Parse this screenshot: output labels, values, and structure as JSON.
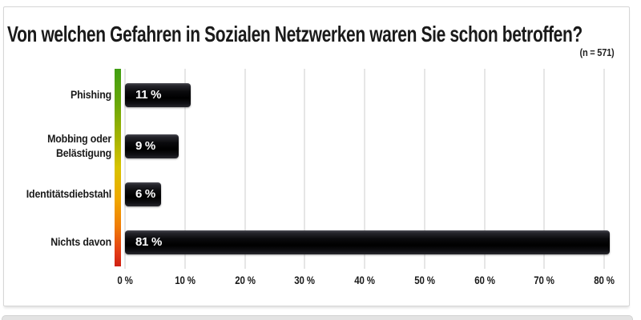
{
  "header": {
    "title": "Von welchen Gefahren in Sozialen Netzwerken waren Sie schon betroffen?",
    "sample_size": "(n = 571)"
  },
  "chart_data": {
    "type": "bar",
    "orientation": "horizontal",
    "title": "Von welchen Gefahren in Sozialen Netzwerken waren Sie schon betroffen?",
    "subtitle": "(n = 571)",
    "categories": [
      "Phishing",
      "Mobbing oder Belästigung",
      "Identitätsdiebstahl",
      "Nichts davon"
    ],
    "values": [
      11,
      9,
      6,
      81
    ],
    "value_labels": [
      "11 %",
      "9 %",
      "6 %",
      "81 %"
    ],
    "x_ticks": [
      {
        "value": 0,
        "label": "0 %"
      },
      {
        "value": 10,
        "label": "10 %"
      },
      {
        "value": 20,
        "label": "20 %"
      },
      {
        "value": 30,
        "label": "30 %"
      },
      {
        "value": 40,
        "label": "40 %"
      },
      {
        "value": 50,
        "label": "50 %"
      },
      {
        "value": 60,
        "label": "60 %"
      },
      {
        "value": 70,
        "label": "70 %"
      },
      {
        "value": 80,
        "label": "80 %"
      }
    ],
    "xlim": [
      0,
      80
    ],
    "grid": true,
    "legend": false,
    "colors": {
      "bar": "#0a0a0d",
      "bar_text": "#ffffff",
      "grid": "#e6e6e6",
      "text": "#1a1a1a",
      "axis_gradient_top": "#3f9e12",
      "axis_gradient_mid": "#d8c300",
      "axis_gradient_bottom": "#cf2014"
    }
  }
}
